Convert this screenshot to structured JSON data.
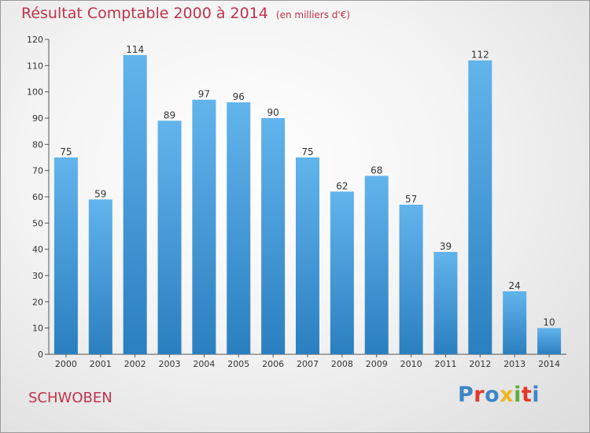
{
  "chart_data": {
    "type": "bar",
    "title": "Résultat Comptable 2000 à 2014",
    "subtitle": "(en milliers d'€)",
    "categories": [
      "2000",
      "2001",
      "2002",
      "2003",
      "2004",
      "2005",
      "2006",
      "2007",
      "2008",
      "2009",
      "2010",
      "2011",
      "2012",
      "2013",
      "2014"
    ],
    "values": [
      75,
      59,
      114,
      89,
      97,
      96,
      90,
      75,
      62,
      68,
      57,
      39,
      112,
      24,
      10
    ],
    "ylim": [
      0,
      120
    ],
    "yticks": [
      0,
      10,
      20,
      30,
      40,
      50,
      60,
      70,
      80,
      90,
      100,
      110,
      120
    ],
    "grid": false,
    "bar_color_top": "#62b4ec",
    "bar_color_bottom": "#2a7fc0"
  },
  "footer": {
    "place": "SCHWOBEN",
    "logo_letters": [
      {
        "ch": "P",
        "color": "#3d86c8"
      },
      {
        "ch": "r",
        "color": "#e2382a"
      },
      {
        "ch": "o",
        "color": "#3d86c8"
      },
      {
        "ch": "x",
        "color": "#f0b61f"
      },
      {
        "ch": "i",
        "color": "#5fae3b"
      },
      {
        "ch": "t",
        "color": "#e2382a"
      },
      {
        "ch": "i",
        "color": "#3d86c8"
      }
    ]
  },
  "colors": {
    "title": "#c0324b",
    "place": "#c0324b"
  }
}
